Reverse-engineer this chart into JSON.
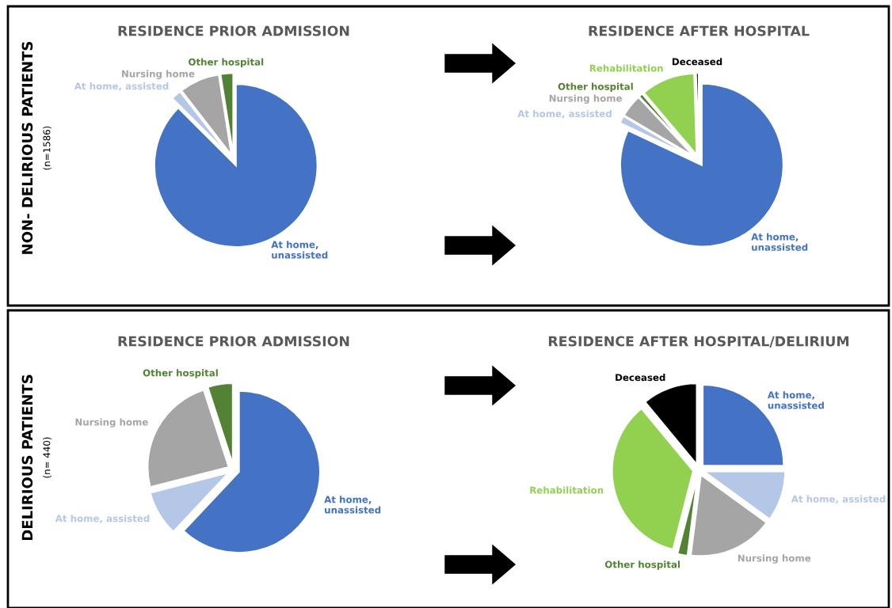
{
  "chart_data": [
    {
      "type": "pie",
      "title": "RESIDENCE PRIOR ADMISSION",
      "categories": [
        "At home,\nunassisted",
        "At home, assisted",
        "Nursing home",
        "Other hospital"
      ],
      "values": [
        87.5,
        2,
        8,
        2.5
      ],
      "colors": [
        "#4472c4",
        "#b4c7e7",
        "#a5a5a5",
        "#548235"
      ],
      "annotations": [
        "NON- DELIRIOUS PATIENTS",
        "(n=1586)"
      ]
    },
    {
      "type": "pie",
      "title": "RESIDENCE AFTER HOSPITAL",
      "categories": [
        "At home,\nunassisted",
        "At home, assisted",
        "Nursing home",
        "Other hospital",
        "Rehabilitation",
        "Deceased"
      ],
      "values": [
        82,
        1.5,
        4.5,
        0.8,
        10.7,
        0.5
      ],
      "colors": [
        "#4472c4",
        "#b4c7e7",
        "#a5a5a5",
        "#548235",
        "#92d050",
        "#000000"
      ]
    },
    {
      "type": "pie",
      "title": "RESIDENCE PRIOR ADMISSION",
      "categories": [
        "At home,\nunassisted",
        "At home, assisted",
        "Nursing home",
        "Other hospital"
      ],
      "values": [
        62,
        9,
        24,
        5
      ],
      "colors": [
        "#4472c4",
        "#b4c7e7",
        "#a5a5a5",
        "#548235"
      ],
      "annotations": [
        "DELIRIOUS PATIENTS",
        "(n= 440)"
      ]
    },
    {
      "type": "pie",
      "title": "RESIDENCE AFTER HOSPITAL/DELIRIUM",
      "categories": [
        "At home,\nunassisted",
        "At home, assisted",
        "Nursing home",
        "Other hospital",
        "Rehabilitation",
        "Deceased"
      ],
      "values": [
        25,
        10,
        17,
        2,
        35,
        11
      ],
      "colors": [
        "#4472c4",
        "#b4c7e7",
        "#a5a5a5",
        "#548235",
        "#92d050",
        "#000000"
      ]
    }
  ]
}
